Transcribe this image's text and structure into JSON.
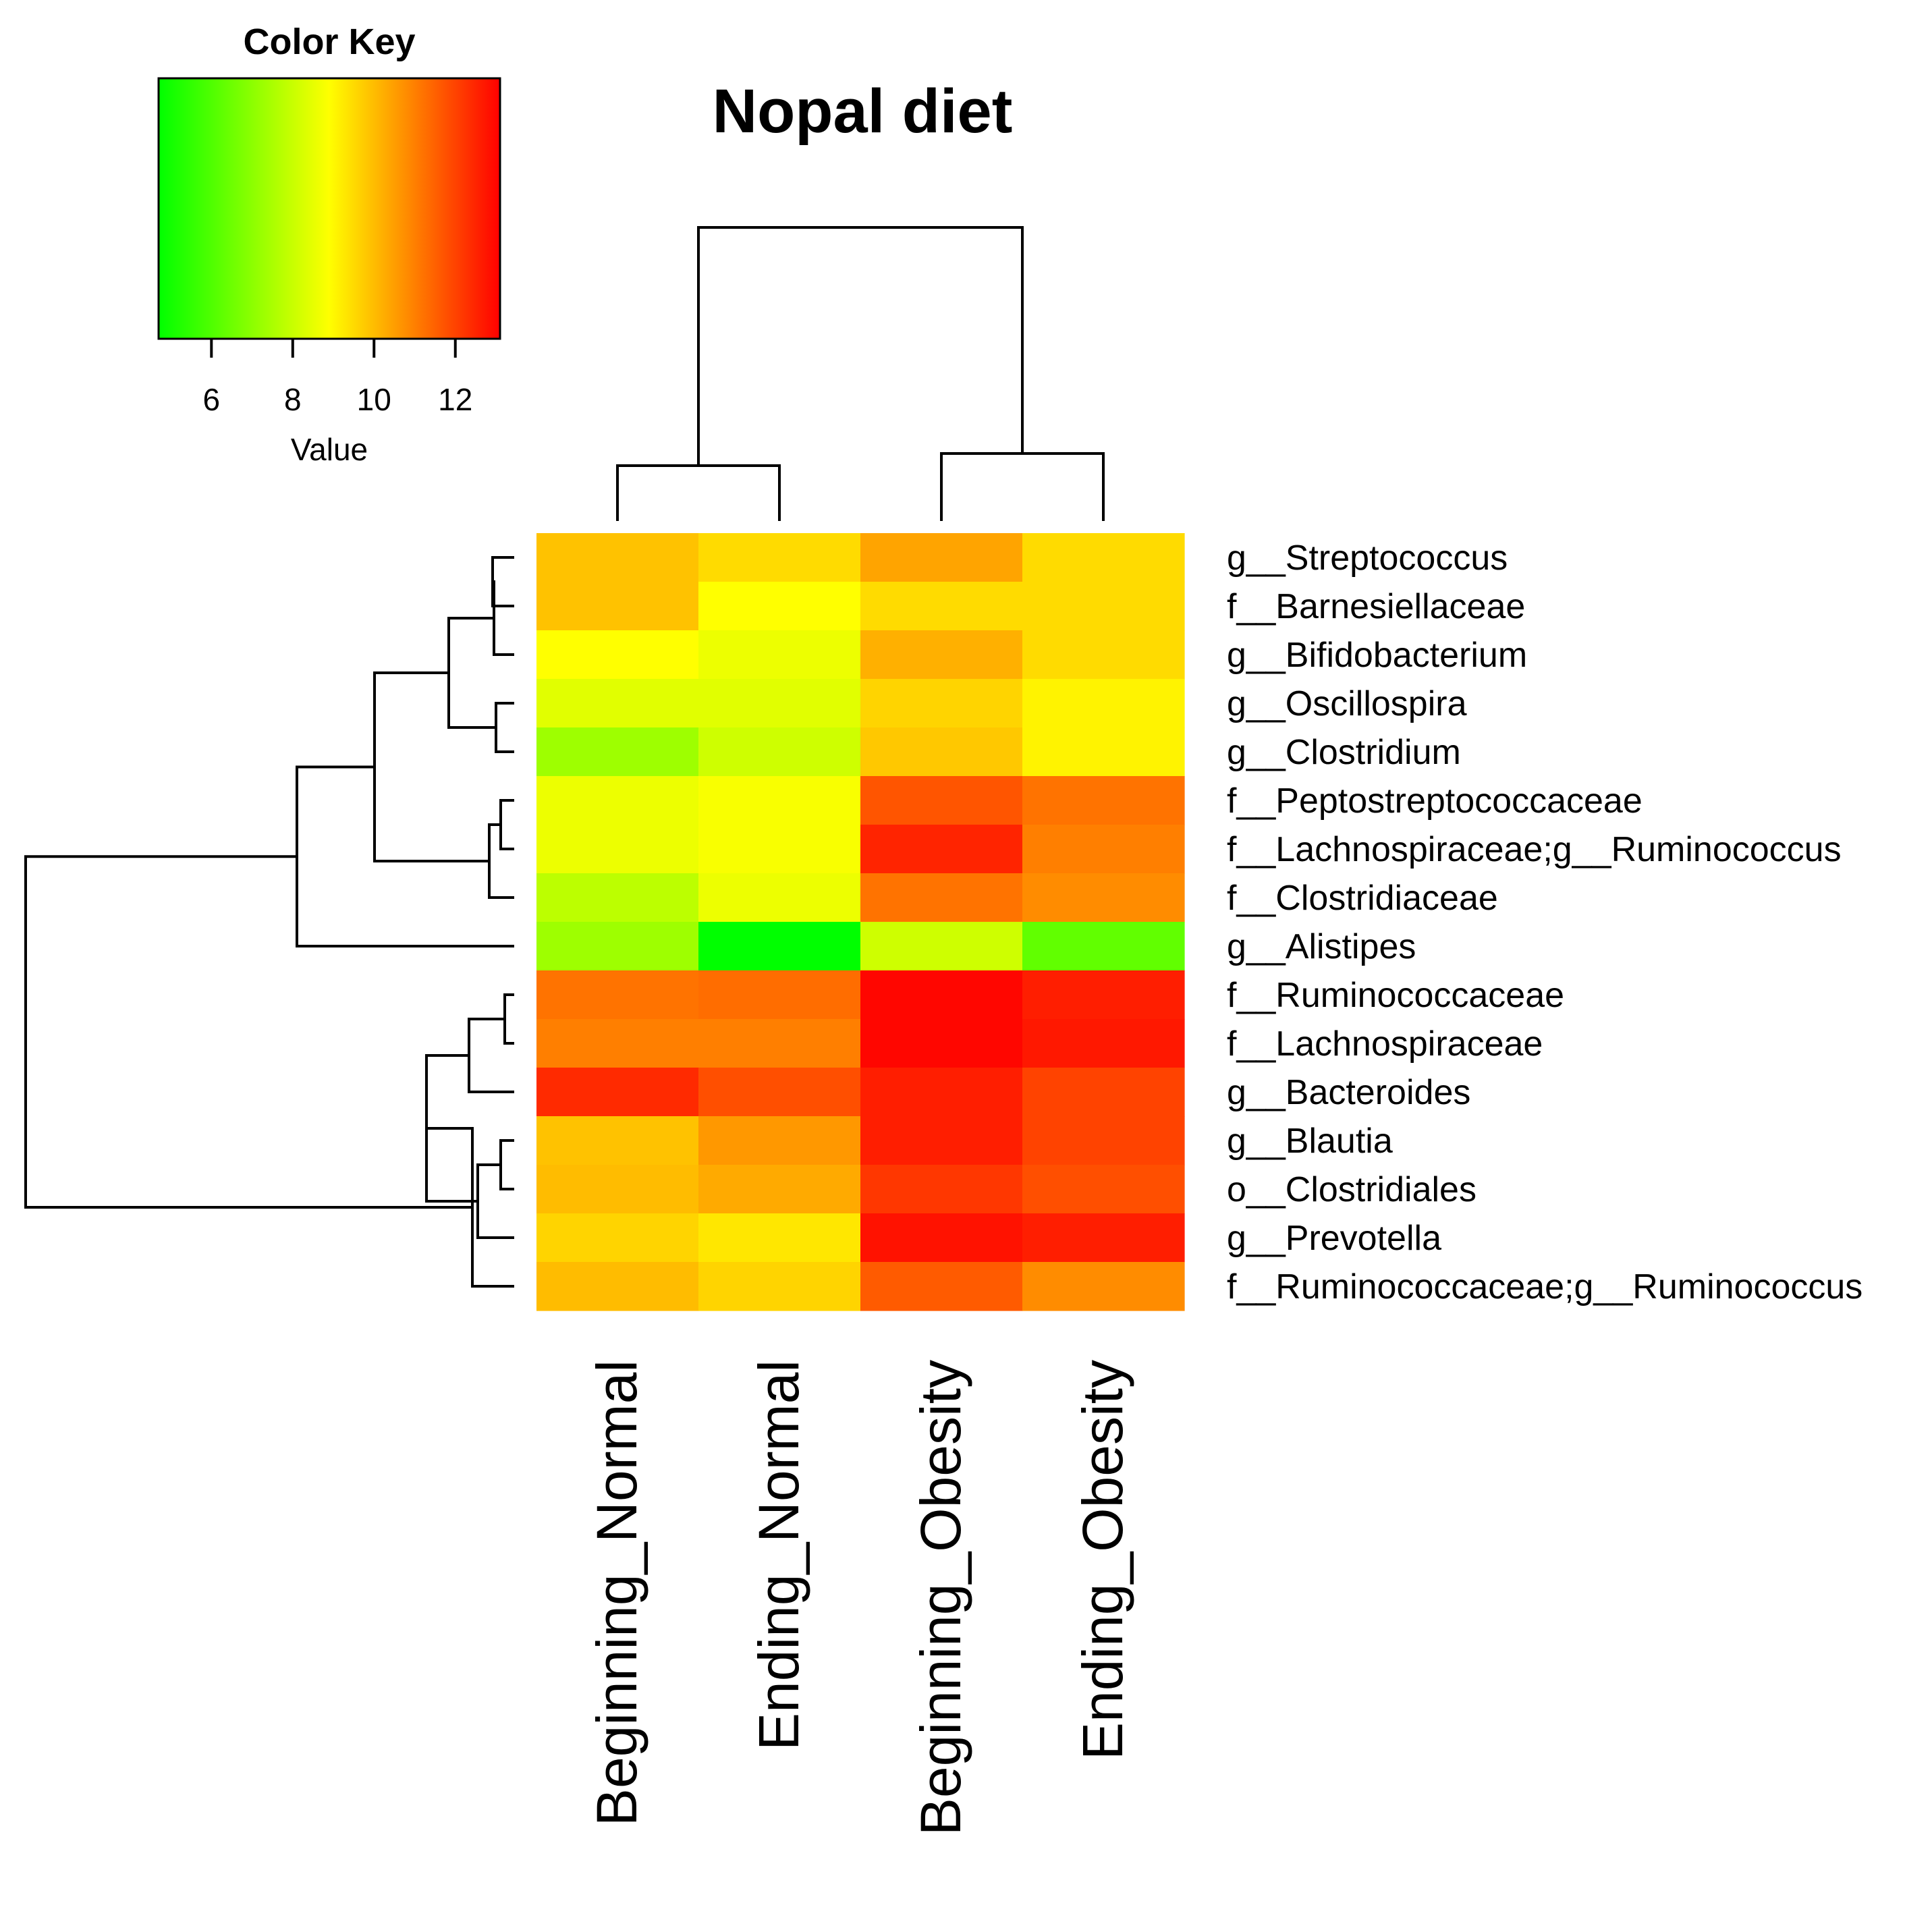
{
  "chart_data": {
    "type": "heatmap",
    "title": "Nopal diet",
    "columns": [
      "Beginning_Normal",
      "Ending_Normal",
      "Beginning_Obesity",
      "Ending_Obesity"
    ],
    "rows": [
      "g__Streptococcus",
      "f__Barnesiellaceae",
      "g__Bifidobacterium",
      "g__Oscillospira",
      "g__Clostridium",
      "f__Peptostreptococcaceae",
      "f__Lachnospiraceae;g__Ruminococcus",
      "f__Clostridiaceae",
      "g__Alistipes",
      "f__Ruminococcaceae",
      "f__Lachnospiraceae",
      "g__Bacteroides",
      "g__Blautia",
      "o__Clostridiales",
      "g__Prevotella",
      "f__Ruminococcaceae;g__Ruminococcus"
    ],
    "values": [
      [
        9.9,
        9.5,
        10.4,
        9.5
      ],
      [
        9.9,
        8.9,
        9.5,
        9.5
      ],
      [
        8.9,
        8.6,
        10.2,
        9.5
      ],
      [
        8.4,
        8.4,
        9.6,
        9.1
      ],
      [
        7.3,
        8.1,
        9.8,
        9.1
      ],
      [
        8.6,
        8.8,
        11.7,
        11.2
      ],
      [
        8.6,
        8.8,
        12.5,
        11.0
      ],
      [
        7.8,
        8.6,
        11.2,
        10.8
      ],
      [
        7.3,
        4.7,
        8.1,
        6.3
      ],
      [
        11.2,
        11.3,
        13.0,
        12.6
      ],
      [
        11.0,
        11.0,
        13.0,
        12.7
      ],
      [
        12.4,
        11.8,
        12.6,
        12.0
      ],
      [
        9.9,
        10.6,
        12.6,
        12.0
      ],
      [
        10.0,
        10.3,
        12.2,
        11.8
      ],
      [
        9.6,
        9.3,
        12.8,
        12.6
      ],
      [
        10.0,
        9.6,
        11.6,
        10.8
      ]
    ],
    "color_key": {
      "title": "Color Key",
      "xlabel": "Value",
      "range": [
        4.7,
        13.1
      ],
      "ticks": [
        6,
        8,
        10,
        12
      ],
      "colors": [
        "#00ff00",
        "#ffff00",
        "#ff0000"
      ]
    },
    "col_dendrogram": [
      [
        0,
        1
      ],
      [
        2,
        3
      ]
    ],
    "row_dendrogram": "((((0,1),2),(3,4)),((5,6),7)),8),((((9,10),11),((12,13),14)),15)"
  }
}
